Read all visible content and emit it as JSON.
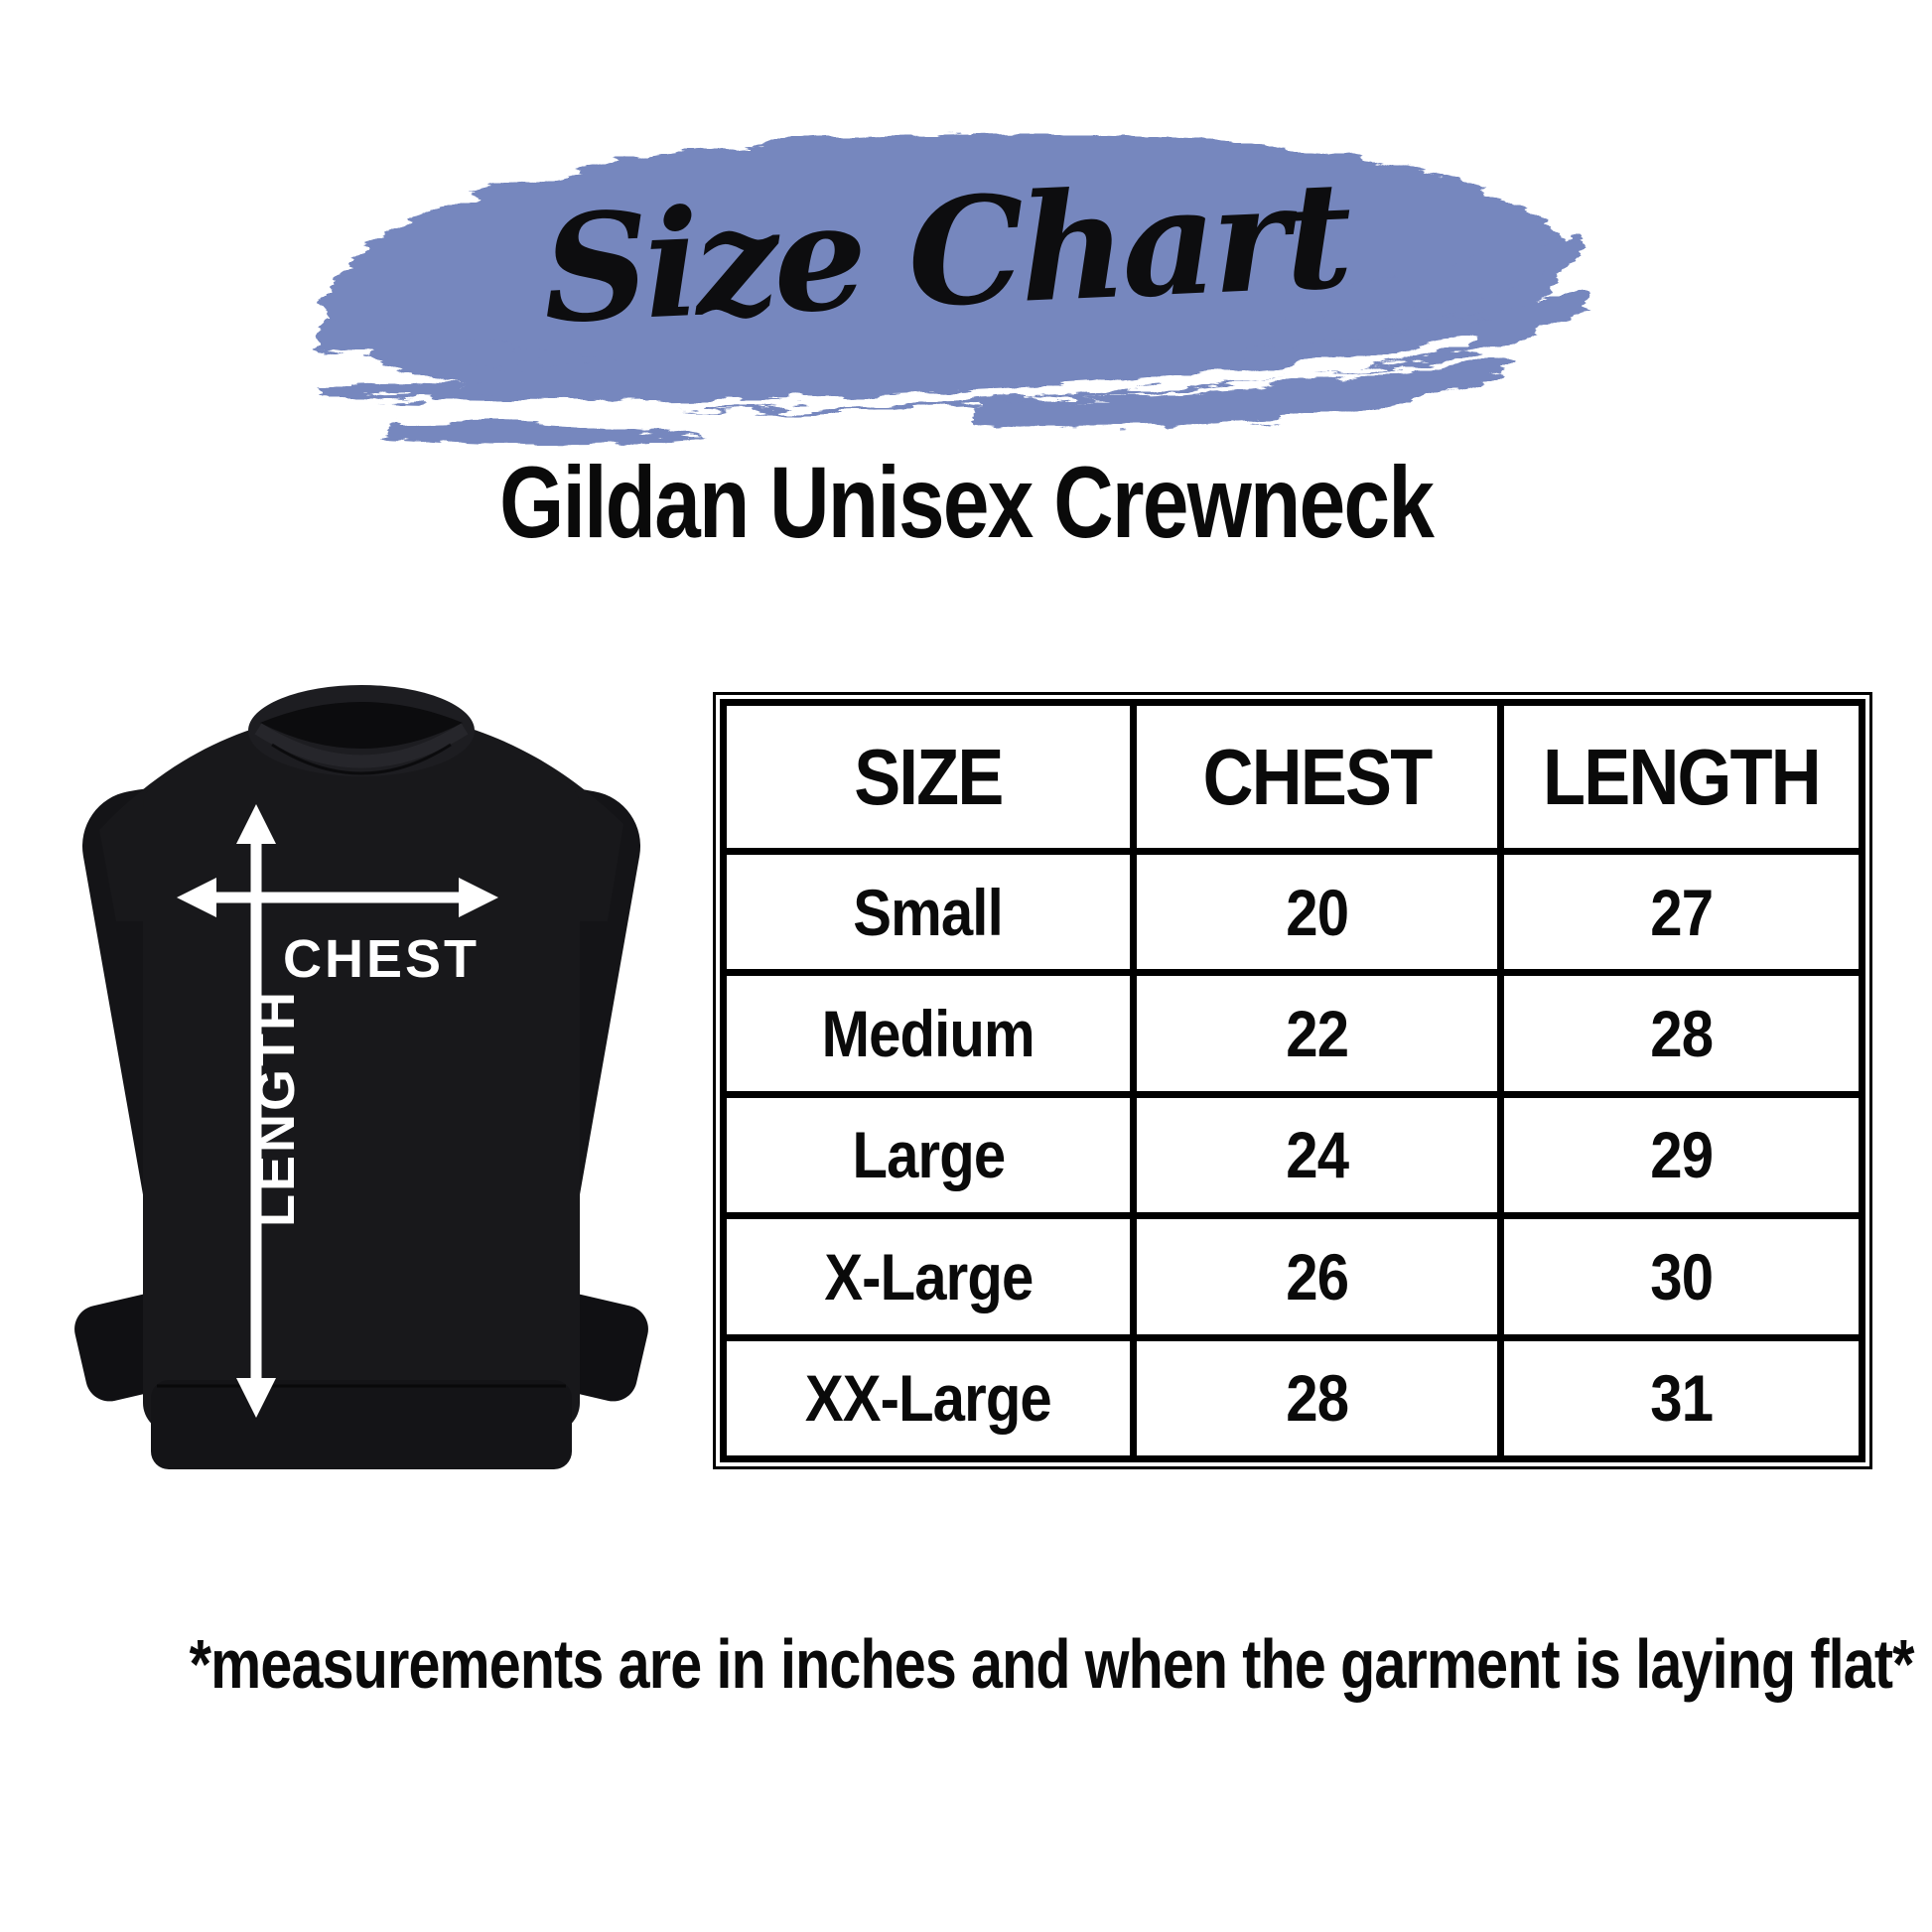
{
  "title": "Size Chart",
  "subtitle": "Gildan Unisex Crewneck",
  "garment": {
    "chest_label": "CHEST",
    "length_label": "LENGTH"
  },
  "size_table": {
    "columns": [
      "SIZE",
      "CHEST",
      "LENGTH"
    ],
    "rows": [
      {
        "size": "Small",
        "chest": "20",
        "length": "27"
      },
      {
        "size": "Medium",
        "chest": "22",
        "length": "28"
      },
      {
        "size": "Large",
        "chest": "24",
        "length": "29"
      },
      {
        "size": "X-Large",
        "chest": "26",
        "length": "30"
      },
      {
        "size": "XX-Large",
        "chest": "28",
        "length": "31"
      }
    ]
  },
  "footnote": "*measurements are in inches and when the garment is laying flat*",
  "colors": {
    "brush_stroke": "#7687be",
    "garment_body": "#17171a",
    "garment_dark": "#121215",
    "collar_shadow": "#0c0c0e",
    "table_border": "#000000",
    "text": "#0a0a0a",
    "arrow_white": "#ffffff"
  },
  "chart_data": {
    "type": "table",
    "title": "Size Chart",
    "subtitle": "Gildan Unisex Crewneck",
    "columns": [
      "SIZE",
      "CHEST",
      "LENGTH"
    ],
    "units": "inches",
    "rows": [
      [
        "Small",
        20,
        27
      ],
      [
        "Medium",
        22,
        28
      ],
      [
        "Large",
        24,
        29
      ],
      [
        "X-Large",
        26,
        30
      ],
      [
        "XX-Large",
        28,
        31
      ]
    ],
    "note": "*measurements are in inches and when the garment is laying flat*"
  }
}
